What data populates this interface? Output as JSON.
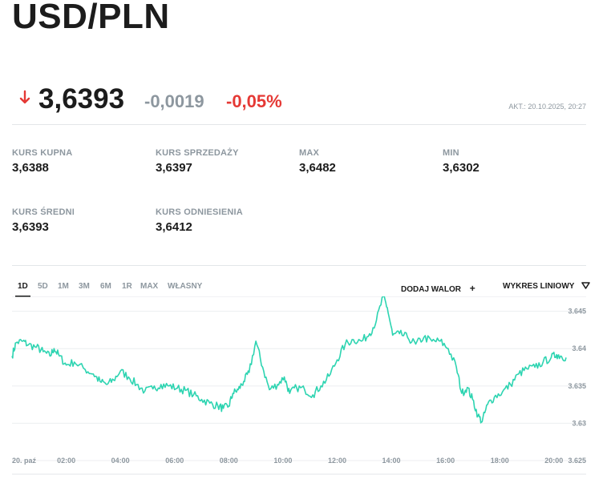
{
  "header": {
    "title": "USD/PLN"
  },
  "quote": {
    "direction": "down",
    "direction_color": "#e53935",
    "price": "3,6393",
    "change_abs": "-0,0019",
    "change_pct": "-0,05%",
    "updated": "AKT.: 20.10.2025, 20:27"
  },
  "stats": [
    {
      "label": "KURS KUPNA",
      "value": "3,6388"
    },
    {
      "label": "KURS SPRZEDAŻY",
      "value": "3,6397"
    },
    {
      "label": "MAX",
      "value": "3,6482"
    },
    {
      "label": "MIN",
      "value": "3,6302"
    },
    {
      "label": "KURS ŚREDNI",
      "value": "3,6393"
    },
    {
      "label": "KURS ODNIESIENIA",
      "value": "3,6412"
    }
  ],
  "range_tabs": [
    "1D",
    "5D",
    "1M",
    "3M",
    "6M",
    "1R",
    "MAX",
    "WŁASNY"
  ],
  "active_range": "1D",
  "toolbar": {
    "add_asset_label": "DODAJ WALOR",
    "add_asset_icon": "plus-icon",
    "chart_type_label": "WYKRES LINIOWY",
    "chart_type_icon": "triangle-down-icon"
  },
  "chart_data": {
    "type": "line",
    "line_color": "#2dd4b1",
    "x_start_hour": 0,
    "x_end_hour": 20.45,
    "x_tick_labels": [
      "20. paź",
      "02:00",
      "04:00",
      "06:00",
      "08:00",
      "10:00",
      "12:00",
      "14:00",
      "16:00",
      "18:00",
      "20:00"
    ],
    "x_tick_hours": [
      0,
      2,
      4,
      6,
      8,
      10,
      12,
      14,
      16,
      18,
      20
    ],
    "y_tick_labels": [
      "3.645",
      "3.64",
      "3.635",
      "3.63",
      "3.625"
    ],
    "y_tick_values": [
      3.645,
      3.64,
      3.635,
      3.63,
      3.625
    ],
    "ylim": [
      3.625,
      3.647
    ],
    "grid": true,
    "series": [
      {
        "values": [
          [
            0.0,
            3.639
          ],
          [
            0.15,
            3.6408
          ],
          [
            0.4,
            3.641
          ],
          [
            0.6,
            3.6405
          ],
          [
            0.9,
            3.6402
          ],
          [
            1.15,
            3.6396
          ],
          [
            1.4,
            3.639
          ],
          [
            1.55,
            3.64
          ],
          [
            1.75,
            3.639
          ],
          [
            2.0,
            3.6378
          ],
          [
            2.3,
            3.6382
          ],
          [
            2.7,
            3.6372
          ],
          [
            3.0,
            3.6366
          ],
          [
            3.25,
            3.6356
          ],
          [
            3.5,
            3.6352
          ],
          [
            3.75,
            3.6358
          ],
          [
            4.0,
            3.637
          ],
          [
            4.3,
            3.6362
          ],
          [
            4.6,
            3.6352
          ],
          [
            4.9,
            3.6343
          ],
          [
            5.2,
            3.6346
          ],
          [
            5.5,
            3.6352
          ],
          [
            5.8,
            3.635
          ],
          [
            6.1,
            3.6347
          ],
          [
            6.4,
            3.6344
          ],
          [
            6.7,
            3.6338
          ],
          [
            7.0,
            3.6332
          ],
          [
            7.3,
            3.6327
          ],
          [
            7.6,
            3.6323
          ],
          [
            7.8,
            3.632
          ],
          [
            8.0,
            3.6323
          ],
          [
            8.15,
            3.634
          ],
          [
            8.35,
            3.6345
          ],
          [
            8.55,
            3.6356
          ],
          [
            8.75,
            3.6368
          ],
          [
            9.0,
            3.641
          ],
          [
            9.25,
            3.6375
          ],
          [
            9.5,
            3.6345
          ],
          [
            9.8,
            3.6352
          ],
          [
            10.05,
            3.6362
          ],
          [
            10.25,
            3.634
          ],
          [
            10.5,
            3.6348
          ],
          [
            10.8,
            3.6345
          ],
          [
            11.1,
            3.6338
          ],
          [
            11.4,
            3.635
          ],
          [
            11.7,
            3.6363
          ],
          [
            12.0,
            3.6385
          ],
          [
            12.3,
            3.6406
          ],
          [
            12.6,
            3.6412
          ],
          [
            12.9,
            3.641
          ],
          [
            13.2,
            3.642
          ],
          [
            13.45,
            3.6438
          ],
          [
            13.7,
            3.647
          ],
          [
            13.85,
            3.6455
          ],
          [
            14.05,
            3.6418
          ],
          [
            14.3,
            3.642
          ],
          [
            14.6,
            3.6415
          ],
          [
            14.9,
            3.6406
          ],
          [
            15.2,
            3.6415
          ],
          [
            15.5,
            3.641
          ],
          [
            15.8,
            3.641
          ],
          [
            16.1,
            3.64
          ],
          [
            16.4,
            3.6375
          ],
          [
            16.6,
            3.634
          ],
          [
            16.8,
            3.6348
          ],
          [
            17.0,
            3.6332
          ],
          [
            17.2,
            3.631
          ],
          [
            17.35,
            3.6302
          ],
          [
            17.55,
            3.6325
          ],
          [
            17.8,
            3.6335
          ],
          [
            18.1,
            3.6342
          ],
          [
            18.4,
            3.6352
          ],
          [
            18.7,
            3.6366
          ],
          [
            19.0,
            3.6373
          ],
          [
            19.3,
            3.6375
          ],
          [
            19.6,
            3.6382
          ],
          [
            19.9,
            3.6388
          ],
          [
            20.1,
            3.6392
          ],
          [
            20.25,
            3.639
          ],
          [
            20.45,
            3.6388
          ]
        ]
      }
    ]
  }
}
